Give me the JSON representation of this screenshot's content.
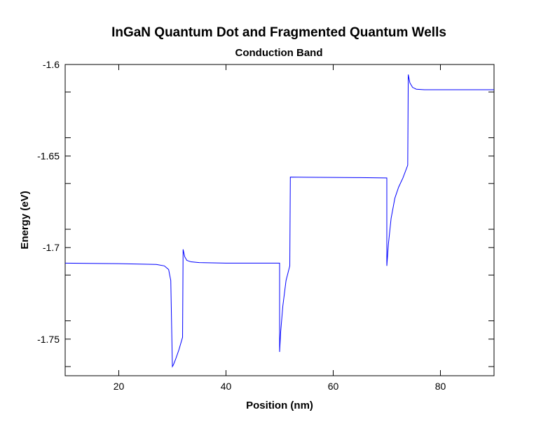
{
  "chart_data": {
    "type": "line",
    "title": "InGaN Quantum Dot and Fragmented Quantum Wells",
    "subtitle": "Conduction Band",
    "xlabel": "Position (nm)",
    "ylabel": "Energy (eV)",
    "xlim": [
      10,
      90
    ],
    "ylim": [
      -1.77,
      -1.6
    ],
    "xticks": [
      20,
      40,
      60,
      80
    ],
    "xtick_labels": [
      "20",
      "40",
      "60",
      "80"
    ],
    "yticks": [
      -1.6,
      -1.65,
      -1.7,
      -1.75
    ],
    "ytick_labels": [
      "-1.6",
      "-1.65",
      "-1.7",
      "-1.75"
    ],
    "grid": false,
    "line_color": "#0000ff",
    "series": [
      {
        "x": [
          10,
          20,
          27,
          28.5,
          29.3,
          29.7,
          30.0,
          30.2,
          30.6,
          31.2,
          31.9,
          32.0,
          32.3,
          32.7,
          33.5,
          35,
          40,
          50,
          50.0,
          50.2,
          50.6,
          51.2,
          51.9,
          52.0,
          55,
          60,
          65,
          70,
          70.0,
          70.3,
          70.8,
          71.5,
          72.2,
          73.0,
          73.9,
          74.0,
          74.3,
          74.8,
          75.5,
          77,
          80,
          90
        ],
        "y": [
          -1.7085,
          -1.7088,
          -1.7092,
          -1.71,
          -1.712,
          -1.718,
          -1.765,
          -1.764,
          -1.761,
          -1.756,
          -1.749,
          -1.701,
          -1.705,
          -1.707,
          -1.7078,
          -1.7082,
          -1.7085,
          -1.7085,
          -1.757,
          -1.746,
          -1.732,
          -1.718,
          -1.71,
          -1.6615,
          -1.6616,
          -1.6617,
          -1.6618,
          -1.662,
          -1.71,
          -1.698,
          -1.684,
          -1.673,
          -1.667,
          -1.662,
          -1.655,
          -1.6055,
          -1.61,
          -1.6125,
          -1.6135,
          -1.6138,
          -1.6138,
          -1.6138
        ]
      }
    ]
  }
}
